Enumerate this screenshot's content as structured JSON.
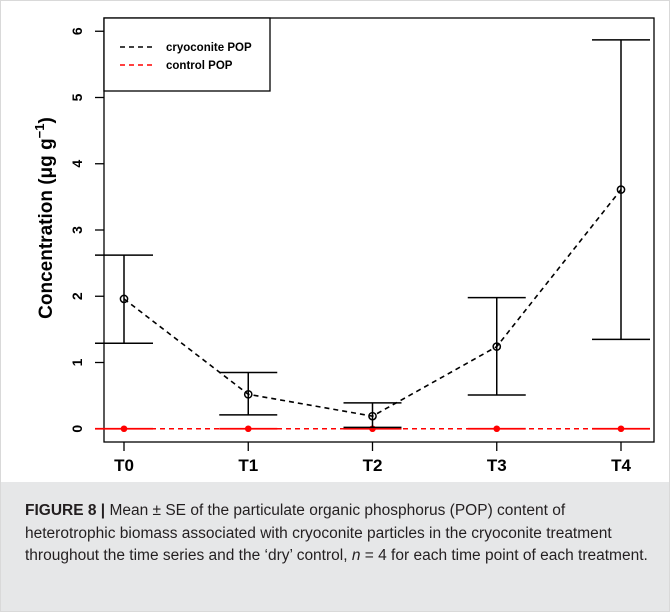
{
  "chart_data": {
    "type": "line",
    "ylabel": "Concentration (μg g",
    "ylabel_exponent": "−1",
    "ylabel_close": ")",
    "categories": [
      "T0",
      "T1",
      "T2",
      "T3",
      "T4"
    ],
    "ylim": [
      -0.2,
      6.2
    ],
    "yticks": [
      0,
      1,
      2,
      3,
      4,
      5,
      6
    ],
    "grid": false,
    "legend_position": "top-left",
    "series": [
      {
        "name": "cryoconite POP",
        "color": "#000000",
        "values": [
          1.96,
          0.52,
          0.19,
          1.24,
          3.61
        ],
        "error_low": [
          1.29,
          0.21,
          0.02,
          0.51,
          1.35
        ],
        "error_high": [
          2.62,
          0.85,
          0.39,
          1.98,
          5.87
        ]
      },
      {
        "name": "control POP",
        "color": "#ff0000",
        "values": [
          0,
          0,
          0,
          0,
          0
        ],
        "error_low": [
          0,
          0,
          0,
          0,
          0
        ],
        "error_high": [
          0,
          0,
          0,
          0,
          0
        ]
      }
    ]
  },
  "caption": {
    "label": "FIGURE 8 |",
    "text_before_n": " Mean ± SE of the particulate organic phosphorus (POP) content of heterotrophic biomass associated with cryoconite particles in the cryoconite treatment throughout the time series and the ‘dry’ control, ",
    "n_symbol": "n",
    "n_value": " = 4",
    "text_after_n": " for each time point of each treatment."
  }
}
